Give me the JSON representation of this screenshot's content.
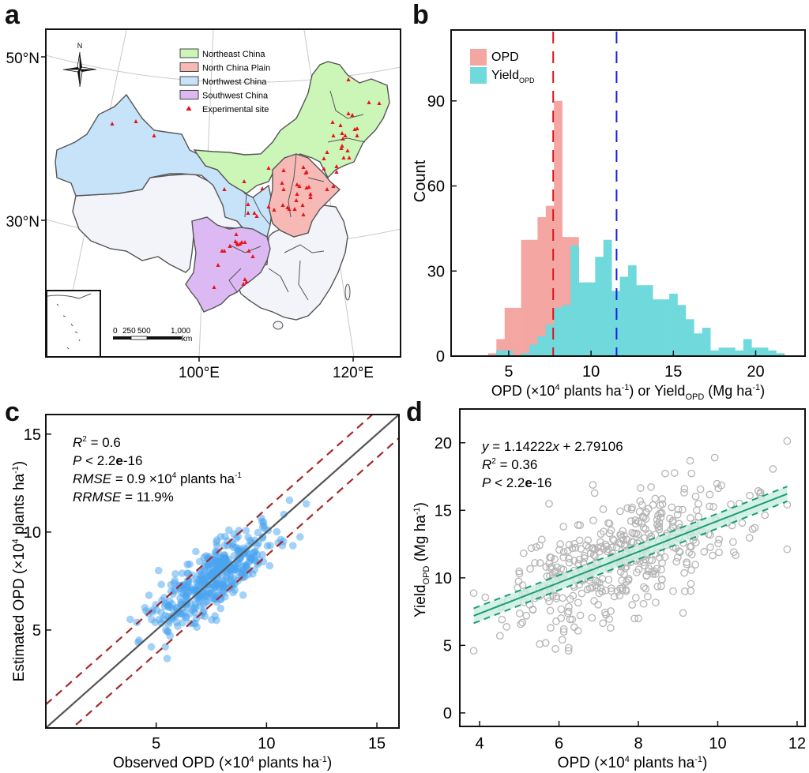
{
  "panels": {
    "a": {
      "label": "a"
    },
    "b": {
      "label": "b"
    },
    "c": {
      "label": "c"
    },
    "d": {
      "label": "d"
    }
  },
  "map": {
    "lat_labels": [
      "50°N",
      "30°N"
    ],
    "lon_labels": [
      "100°E",
      "120°E"
    ],
    "north_arrow": "N",
    "legend": [
      {
        "label": "Northeast China",
        "color": "#ccf5b8"
      },
      {
        "label": "North China Plain",
        "color": "#f7b9b5"
      },
      {
        "label": "Northwest China",
        "color": "#c6e3f9"
      },
      {
        "label": "Southwest China",
        "color": "#dcb9f3"
      },
      {
        "label": "Experimental site",
        "color": "#e8141a"
      }
    ],
    "scale_bar": {
      "ticks": [
        "0",
        "250",
        "500",
        "1,000"
      ],
      "unit": "km"
    }
  },
  "chart_data": [
    {
      "panel": "b",
      "type": "bar",
      "subtype": "histogram",
      "xlabel": "OPD (×10⁴ plants ha⁻¹) or Yield_OPD (Mg ha⁻¹)",
      "xlabel_parts": {
        "pre": "OPD (×10",
        "sup1": "4",
        "mid": " plants ha",
        "sup2": "-1",
        "mid2": ") or Yield",
        "sub": "OPD",
        "post": " (Mg ha",
        "sup3": "-1",
        "end": ")"
      },
      "ylabel": "Count",
      "xlim": [
        1.5,
        23.0
      ],
      "ylim": [
        0,
        115
      ],
      "xticks": [
        5,
        10,
        15,
        20
      ],
      "yticks": [
        0,
        30,
        60,
        90
      ],
      "bin_width": 0.5,
      "series": [
        {
          "name": "OPD",
          "color": "#f4a6a3",
          "bin_start": 3.75,
          "counts": [
            1,
            6,
            17,
            17,
            41,
            41,
            49,
            53,
            90,
            42,
            42,
            13,
            13,
            9,
            13,
            9,
            9
          ]
        },
        {
          "name": "Yield_OPD",
          "color": "#6fd9dc",
          "bin_start": 4.25,
          "counts": [
            2,
            2,
            0,
            1,
            4,
            7,
            11,
            17,
            18,
            39,
            26,
            26,
            35,
            41,
            23,
            28,
            32,
            25,
            25,
            20,
            20,
            22,
            18,
            13,
            8,
            10,
            2,
            3,
            3,
            2,
            6,
            3,
            3,
            2,
            1
          ]
        }
      ],
      "legend": [
        {
          "label": "OPD",
          "sub": "",
          "color": "#f4a6a3"
        },
        {
          "label": "Yield",
          "sub": "OPD",
          "color": "#6fd9dc"
        }
      ],
      "overlap_color": "#7fbcbc",
      "vlines": [
        {
          "x": 7.7,
          "color": "#e0131a",
          "style": "dashed",
          "label": "OPD mean"
        },
        {
          "x": 11.55,
          "color": "#1520e0",
          "style": "dashed",
          "label": "Yield_OPD mean"
        }
      ],
      "legend_position": "top-left"
    },
    {
      "panel": "c",
      "type": "scatter",
      "xlabel": "Observed OPD (×10⁴ plants ha⁻¹)",
      "ylabel": "Estimated OPD (×10⁴ plants ha⁻¹)",
      "xlabel_parts": {
        "pre": "Observed OPD (×10",
        "sup1": "4",
        "mid": " plants ha",
        "sup2": "-1",
        "end": ")"
      },
      "ylabel_parts": {
        "pre": "Estimated OPD (×10",
        "sup1": "4",
        "mid": " plants ha",
        "sup2": "-1",
        "end": ")"
      },
      "xlim": [
        0,
        16
      ],
      "ylim": [
        0,
        16
      ],
      "xticks": [
        5,
        10,
        15
      ],
      "yticks": [
        5,
        10,
        15
      ],
      "point_color": "#4aa3f0",
      "n_points_approx": 450,
      "point_cloud": {
        "x_range": [
          3.8,
          11.8
        ],
        "center": [
          7.8,
          7.7
        ],
        "note": "dense cluster along 1:1 line"
      },
      "lines": [
        {
          "name": "1:1 line",
          "slope": 1,
          "intercept": 0,
          "color": "#555555",
          "style": "solid"
        },
        {
          "name": "upper bound",
          "slope": 1,
          "intercept": 1.2,
          "color": "#a42a2a",
          "style": "dashed"
        },
        {
          "name": "lower bound",
          "slope": 1,
          "intercept": -1.2,
          "color": "#a42a2a",
          "style": "dashed"
        }
      ],
      "annotations": [
        {
          "italic": "R",
          "sup": "2",
          "text": " = 0.6"
        },
        {
          "italic": "P",
          "text": " < 2.2",
          "bold": "e",
          "text2": "-16"
        },
        {
          "italic": "RMSE",
          "text": " = 0.9 ×10",
          "sup": "4",
          "text2": " plants ha",
          "sup2": "-1"
        },
        {
          "italic": "RRMSE",
          "text": " = 11.9%"
        }
      ],
      "stats": {
        "R2": 0.6,
        "P": "< 2.2e-16",
        "RMSE": 0.9,
        "RRMSE_percent": 11.9
      }
    },
    {
      "panel": "d",
      "type": "scatter",
      "xlabel": "OPD (×10⁴ plants ha⁻¹)",
      "ylabel": "Yield_OPD (Mg ha⁻¹)",
      "xlabel_parts": {
        "pre": "OPD (×10",
        "sup1": "4",
        "mid": " plants ha",
        "sup2": "-1",
        "end": ")"
      },
      "ylabel_parts": {
        "pre": "Yield",
        "sub": "OPD",
        "mid": " (Mg ha",
        "sup": "-1",
        "end": ")"
      },
      "xlim": [
        3.5,
        12.2
      ],
      "ylim": [
        -1,
        22.5
      ],
      "xticks": [
        4,
        6,
        8,
        10,
        12
      ],
      "yticks": [
        0,
        5,
        10,
        15,
        20
      ],
      "point_color": "#b5b5b5",
      "marker": "open-circle",
      "n_points_approx": 450,
      "point_cloud": {
        "x_range": [
          3.85,
          11.75
        ],
        "y_range": [
          4.6,
          20.4
        ]
      },
      "regression": {
        "slope": 1.14222,
        "intercept": 2.79106,
        "x_range": [
          3.85,
          11.75
        ],
        "color": "#1e9e6a",
        "ci_color": "#c8eee2",
        "ci_halfwidth_data": 0.55
      },
      "annotations": [
        {
          "italic": "y",
          "text": " = 1.14222",
          "italic2": "x",
          "text2": " + 2.79106"
        },
        {
          "italic": "R",
          "sup": "2",
          "text": " = 0.36"
        },
        {
          "italic": "P",
          "text": " < 2.2",
          "bold": "e",
          "text2": "-16"
        }
      ],
      "stats": {
        "slope": 1.14222,
        "intercept": 2.79106,
        "R2": 0.36,
        "P": "< 2.2e-16"
      }
    }
  ]
}
